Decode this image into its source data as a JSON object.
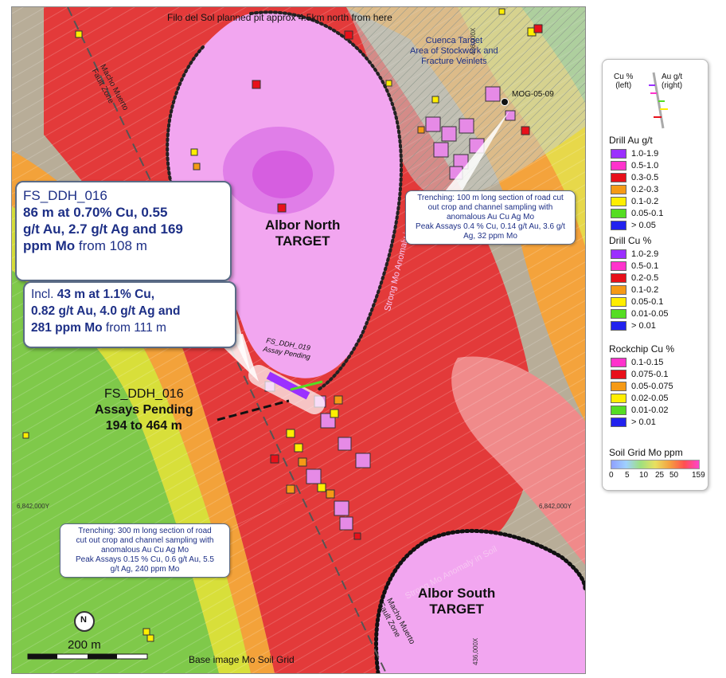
{
  "top_note": "Filo del Sol planned pit approx 4.5km north from here",
  "base_note": "Base image Mo Soil Grid",
  "scale_label": "200 m",
  "north_label": "N",
  "coords": {
    "top_easting": "436,000X",
    "bottom_easting": "436,000X",
    "left_northing": "6,842,000Y",
    "right_northing": "6,842,000Y"
  },
  "faults": {
    "upper": [
      "Macho Muerto",
      "Fault Zone"
    ],
    "lower": [
      "Macho Muerto",
      "Fault Zone"
    ]
  },
  "anomaly_labels": {
    "north": "Strong Mo Anomaly in Soil",
    "south": "Strong Mo Anomaly in Soil"
  },
  "cuenca": [
    "Cuenca Target",
    "Area of Stockwork and",
    "Fracture Veinlets"
  ],
  "mog_label": "MOG-05-09",
  "targets": {
    "albor_north": [
      "Albor North",
      "TARGET"
    ],
    "albor_south": [
      "Albor South",
      "TARGET"
    ]
  },
  "callout_main": {
    "hole": "FS_DDH_016",
    "line1_bold": "86 m at 0.70% Cu, 0.55",
    "line2_bold": "g/t Au, 2.7 g/t Ag and 169",
    "line3_bold": "ppm Mo",
    "line3_rest": " from 108 m"
  },
  "callout_incl": {
    "prefix": "Incl. ",
    "line1_bold": "43 m at 1.1% Cu,",
    "line2_bold": "0.82 g/t Au, 4.0 g/t Ag and",
    "line3_bold": "281 ppm Mo",
    "line3_rest": " from 111 m"
  },
  "pending_016": {
    "hole": "FS_DDH_016",
    "line1": "Assays Pending",
    "line2": "194 to 464 m"
  },
  "pending_019": [
    "FS_DDH_019",
    "Assay Pending"
  ],
  "trench_north": [
    "Trenching: 100 m long section of road cut",
    "out crop and channel sampling with",
    "anomalous  Au Cu Ag Mo",
    "Peak Assays 0.4 % Cu, 0.14 g/t Au, 3.6 g/t",
    "Ag, 32 ppm Mo"
  ],
  "trench_south": [
    "Trenching: 300 m long section of road",
    "cut out crop and channel sampling with",
    "anomalous  Au Cu Ag Mo",
    "Peak Assays 0.15 % Cu, 0.6 g/t Au, 5.5",
    "g/t Ag, 240 ppm Mo"
  ],
  "legend": {
    "trace_left": [
      "Cu %",
      "(left)"
    ],
    "trace_right": [
      "Au g/t",
      "(right)"
    ],
    "drill_au": {
      "title": "Drill Au g/t",
      "items": [
        {
          "label": "1.0-1.9",
          "color": "#9b30ff"
        },
        {
          "label": "0.5-1.0",
          "color": "#ff33cc"
        },
        {
          "label": "0.3-0.5",
          "color": "#e8101a"
        },
        {
          "label": "0.2-0.3",
          "color": "#f59a16"
        },
        {
          "label": "0.1-0.2",
          "color": "#ffee00"
        },
        {
          "label": "0.05-0.1",
          "color": "#55dd22"
        },
        {
          "label": "> 0.05",
          "color": "#2222ee"
        }
      ]
    },
    "drill_cu": {
      "title": "Drill Cu %",
      "items": [
        {
          "label": "1.0-2.9",
          "color": "#9b30ff"
        },
        {
          "label": "0.5-0.1",
          "color": "#ff33cc"
        },
        {
          "label": "0.2-0.5",
          "color": "#e8101a"
        },
        {
          "label": "0.1-0.2",
          "color": "#f59a16"
        },
        {
          "label": "0.05-0.1",
          "color": "#ffee00"
        },
        {
          "label": "0.01-0.05",
          "color": "#55dd22"
        },
        {
          "label": "> 0.01",
          "color": "#2222ee"
        }
      ]
    },
    "rockchip": {
      "title": "Rockchip Cu %",
      "items": [
        {
          "label": "0.1-0.15",
          "color": "#ff33cc"
        },
        {
          "label": "0.075-0.1",
          "color": "#e8101a"
        },
        {
          "label": "0.05-0.075",
          "color": "#f59a16"
        },
        {
          "label": "0.02-0.05",
          "color": "#ffee00"
        },
        {
          "label": "0.01-0.02",
          "color": "#55dd22"
        },
        {
          "label": "> 0.01",
          "color": "#2222ee"
        }
      ]
    },
    "soil": {
      "title": "Soil Grid Mo ppm",
      "ticks": [
        "0",
        "5",
        "10",
        "25",
        "50",
        "159"
      ]
    }
  }
}
